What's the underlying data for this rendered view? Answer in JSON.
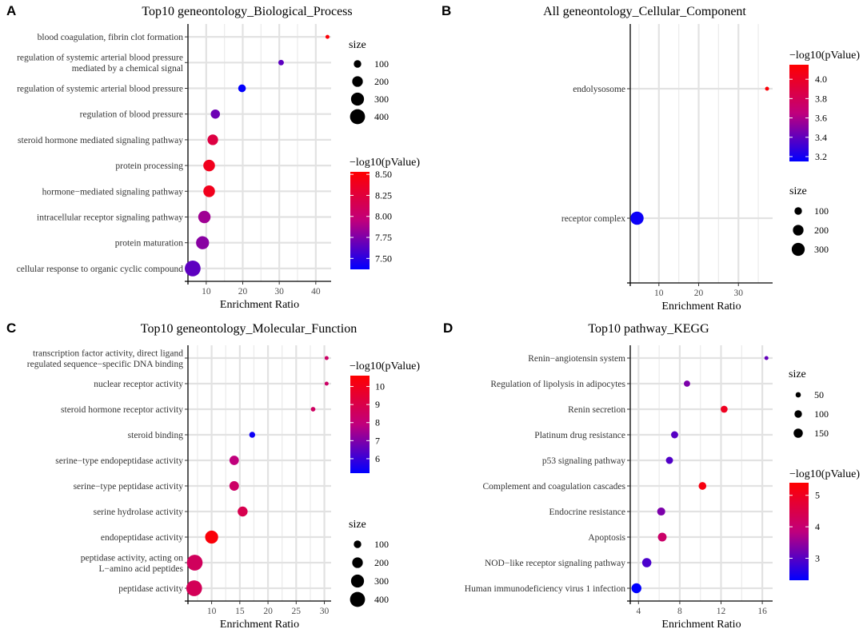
{
  "figure": {
    "panel_labels": [
      "A",
      "B",
      "C",
      "D"
    ],
    "gradient_colors": {
      "high": "#ff0000",
      "mid": "#c0007c",
      "low": "#0000ff"
    }
  },
  "chart_data": [
    {
      "panel": "A",
      "type": "scatter",
      "title": "Top10 geneontology_Biological_Process",
      "xlabel": "Enrichment Ratio",
      "ylabel": "",
      "xlim": [
        5,
        44.2
      ],
      "xticks": [
        10,
        20,
        30,
        40
      ],
      "grid": true,
      "categories": [
        [
          "blood coagulation, fibrin clot formation"
        ],
        [
          "regulation of systemic arterial blood pressure",
          "mediated by a chemical signal"
        ],
        [
          "regulation of systemic arterial blood pressure"
        ],
        [
          "regulation of blood pressure"
        ],
        [
          "steroid hormone mediated signaling pathway"
        ],
        [
          "protein processing"
        ],
        [
          "hormone−mediated signaling pathway"
        ],
        [
          "intracellular receptor signaling pathway"
        ],
        [
          "protein maturation"
        ],
        [
          "cellular response to organic cyclic compound"
        ]
      ],
      "x": [
        43.2,
        30.5,
        19.8,
        12.5,
        11.8,
        10.8,
        10.8,
        9.5,
        9.0,
        6.3
      ],
      "size": [
        20,
        55,
        105,
        150,
        200,
        240,
        240,
        270,
        300,
        440
      ],
      "color": [
        8.5,
        7.65,
        7.38,
        7.7,
        8.22,
        8.4,
        8.4,
        7.85,
        7.78,
        7.65
      ],
      "size_legend": {
        "title": "size",
        "values": [
          100,
          200,
          300,
          400
        ]
      },
      "color_legend": {
        "title": "−log10(pValue)",
        "min": 7.37,
        "max": 8.53,
        "ticks": [
          7.5,
          7.75,
          8.0,
          8.25,
          8.5
        ],
        "tick_labels": [
          "7.50",
          "7.75",
          "8.00",
          "8.25",
          "8.50"
        ]
      }
    },
    {
      "panel": "B",
      "type": "scatter",
      "title": "All geneontology_Cellular_Component",
      "xlabel": "Enrichment Ratio",
      "ylabel": "",
      "xlim": [
        2.8,
        38.6
      ],
      "xticks": [
        10,
        20,
        30
      ],
      "grid": true,
      "categories": [
        [
          "endolysosome"
        ],
        [
          "receptor complex"
        ]
      ],
      "x": [
        37.2,
        4.5
      ],
      "size": [
        12,
        310
      ],
      "color": [
        4.12,
        3.18
      ],
      "size_legend": {
        "title": "size",
        "values": [
          100,
          200,
          300
        ]
      },
      "color_legend": {
        "title": "−log10(pValue)",
        "min": 3.15,
        "max": 4.15,
        "ticks": [
          3.2,
          3.4,
          3.6,
          3.8,
          4.0
        ],
        "tick_labels": [
          "3.2",
          "3.4",
          "3.6",
          "3.8",
          "4.0"
        ]
      }
    },
    {
      "panel": "C",
      "type": "scatter",
      "title": "Top10 geneontology_Molecular_Function",
      "xlabel": "Enrichment Ratio",
      "ylabel": "",
      "xlim": [
        5.8,
        31.2
      ],
      "xticks": [
        10,
        15,
        20,
        25,
        30
      ],
      "grid": true,
      "categories": [
        [
          "transcription factor activity, direct ligand",
          "regulated sequence−specific DNA binding"
        ],
        [
          "nuclear receptor activity"
        ],
        [
          "steroid hormone receptor activity"
        ],
        [
          "steroid binding"
        ],
        [
          "serine−type endopeptidase activity"
        ],
        [
          "serine−type peptidase activity"
        ],
        [
          "serine hydrolase activity"
        ],
        [
          "endopeptidase activity"
        ],
        [
          "peptidase activity, acting on",
          "L−amino acid peptides"
        ],
        [
          "peptidase activity"
        ]
      ],
      "x": [
        30.4,
        30.4,
        28.0,
        17.2,
        14.0,
        14.0,
        15.5,
        10.0,
        7.0,
        6.9
      ],
      "size": [
        22,
        22,
        38,
        62,
        155,
        160,
        175,
        300,
        440,
        440
      ],
      "color": [
        8.4,
        8.4,
        8.5,
        5.4,
        7.9,
        8.4,
        8.9,
        10.4,
        8.6,
        8.7
      ],
      "size_legend": {
        "title": "size",
        "values": [
          100,
          200,
          300,
          400
        ]
      },
      "color_legend": {
        "title": "−log10(pValue)",
        "min": 5.2,
        "max": 10.6,
        "ticks": [
          6,
          7,
          8,
          9,
          10
        ],
        "tick_labels": [
          "6",
          "7",
          "8",
          "9",
          "10"
        ]
      }
    },
    {
      "panel": "D",
      "type": "scatter",
      "title": "Top10 pathway_KEGG",
      "xlabel": "Enrichment Ratio",
      "ylabel": "",
      "xlim": [
        3.2,
        17.0
      ],
      "xticks": [
        4,
        8,
        12,
        16
      ],
      "grid": true,
      "categories": [
        [
          "Renin−angiotensin system"
        ],
        [
          "Regulation of lipolysis in adipocytes"
        ],
        [
          "Renin secretion"
        ],
        [
          "Platinum drug resistance"
        ],
        [
          "p53 signaling pathway"
        ],
        [
          "Complement and coagulation cascades"
        ],
        [
          "Endocrine resistance"
        ],
        [
          "Apoptosis"
        ],
        [
          "NOD−like receptor signaling pathway"
        ],
        [
          "Human immunodeficiency virus 1 infection"
        ]
      ],
      "x": [
        16.4,
        8.7,
        12.3,
        7.5,
        7.0,
        10.2,
        6.2,
        6.3,
        4.8,
        3.8
      ],
      "size": [
        12,
        70,
        85,
        90,
        90,
        105,
        115,
        135,
        150,
        175
      ],
      "color": [
        3.1,
        3.3,
        5.0,
        3.0,
        2.95,
        5.2,
        3.3,
        4.1,
        2.9,
        2.3
      ],
      "size_legend": {
        "title": "size",
        "values": [
          50,
          100,
          150
        ]
      },
      "color_legend": {
        "title": "−log10(pValue)",
        "min": 2.3,
        "max": 5.4,
        "ticks": [
          3,
          4,
          5
        ],
        "tick_labels": [
          "3",
          "4",
          "5"
        ]
      }
    }
  ]
}
